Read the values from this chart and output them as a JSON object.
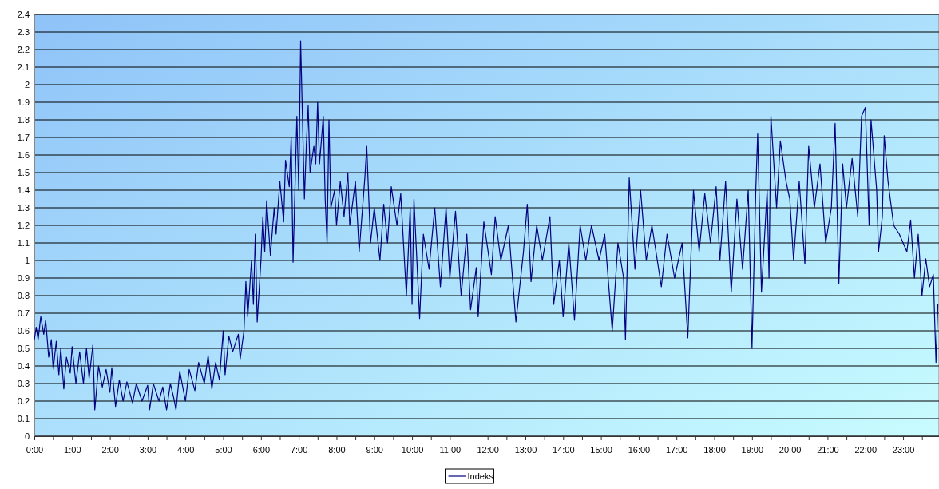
{
  "chart_data": {
    "type": "line",
    "x": [
      0,
      0.05,
      0.1,
      0.17,
      0.25,
      0.3,
      0.38,
      0.45,
      0.5,
      0.58,
      0.65,
      0.7,
      0.78,
      0.85,
      0.95,
      1,
      1.1,
      1.2,
      1.3,
      1.38,
      1.45,
      1.55,
      1.6,
      1.7,
      1.8,
      1.9,
      2,
      2.05,
      2.15,
      2.25,
      2.35,
      2.45,
      2.6,
      2.7,
      2.85,
      3,
      3.05,
      3.15,
      3.3,
      3.4,
      3.5,
      3.6,
      3.7,
      3.75,
      3.85,
      4,
      4.1,
      4.25,
      4.35,
      4.5,
      4.6,
      4.7,
      4.8,
      4.9,
      5,
      5.05,
      5.15,
      5.25,
      5.4,
      5.45,
      5.55,
      5.6,
      5.65,
      5.75,
      5.8,
      5.85,
      5.9,
      6,
      6.05,
      6.1,
      6.15,
      6.25,
      6.35,
      6.4,
      6.5,
      6.6,
      6.65,
      6.75,
      6.8,
      6.85,
      6.95,
      7,
      7.05,
      7.1,
      7.15,
      7.2,
      7.25,
      7.3,
      7.4,
      7.45,
      7.5,
      7.55,
      7.65,
      7.7,
      7.75,
      7.8,
      7.85,
      7.95,
      8,
      8.1,
      8.2,
      8.3,
      8.35,
      8.5,
      8.6,
      8.75,
      8.8,
      8.9,
      9,
      9.15,
      9.25,
      9.35,
      9.45,
      9.6,
      9.7,
      9.85,
      9.95,
      10,
      10.05,
      10.2,
      10.3,
      10.45,
      10.6,
      10.75,
      10.9,
      11,
      11.15,
      11.3,
      11.45,
      11.55,
      11.7,
      11.75,
      11.9,
      12.1,
      12.2,
      12.35,
      12.55,
      12.75,
      12.95,
      13.05,
      13.15,
      13.3,
      13.45,
      13.65,
      13.75,
      13.9,
      14,
      14.15,
      14.3,
      14.45,
      14.6,
      14.75,
      14.95,
      15.1,
      15.3,
      15.45,
      15.6,
      15.65,
      15.75,
      15.9,
      16.05,
      16.2,
      16.35,
      16.6,
      16.75,
      16.95,
      17.15,
      17.3,
      17.45,
      17.6,
      17.75,
      17.9,
      18.05,
      18.15,
      18.3,
      18.45,
      18.6,
      18.75,
      18.9,
      19,
      19.1,
      19.15,
      19.25,
      19.4,
      19.45,
      19.5,
      19.65,
      19.75,
      19.9,
      20,
      20.1,
      20.25,
      20.4,
      20.5,
      20.65,
      20.8,
      20.95,
      21.1,
      21.2,
      21.3,
      21.4,
      21.5,
      21.65,
      21.8,
      21.9,
      22,
      22.1,
      22.15,
      22.3,
      22.35,
      22.45,
      22.5,
      22.6,
      22.75,
      22.9,
      23.1,
      23.2,
      23.3,
      23.4,
      23.5,
      23.6,
      23.7,
      23.8,
      23.87,
      23.92
    ],
    "series": [
      {
        "name": "Indeks",
        "color": "#000080",
        "values": [
          0.55,
          0.62,
          0.55,
          0.68,
          0.58,
          0.66,
          0.45,
          0.55,
          0.38,
          0.54,
          0.35,
          0.5,
          0.27,
          0.45,
          0.36,
          0.51,
          0.3,
          0.48,
          0.3,
          0.5,
          0.33,
          0.52,
          0.15,
          0.4,
          0.28,
          0.38,
          0.25,
          0.39,
          0.17,
          0.32,
          0.2,
          0.31,
          0.19,
          0.3,
          0.2,
          0.29,
          0.15,
          0.3,
          0.2,
          0.28,
          0.15,
          0.3,
          0.21,
          0.15,
          0.37,
          0.2,
          0.38,
          0.26,
          0.42,
          0.3,
          0.46,
          0.27,
          0.42,
          0.32,
          0.6,
          0.35,
          0.57,
          0.48,
          0.58,
          0.44,
          0.6,
          0.88,
          0.68,
          1.0,
          0.75,
          1.15,
          0.65,
          1.0,
          1.25,
          1.05,
          1.34,
          1.03,
          1.3,
          1.15,
          1.45,
          1.22,
          1.57,
          1.42,
          1.7,
          0.99,
          1.82,
          1.4,
          2.25,
          1.8,
          1.35,
          1.65,
          1.88,
          1.5,
          1.65,
          1.55,
          1.9,
          1.55,
          1.82,
          1.35,
          1.1,
          1.8,
          1.3,
          1.4,
          1.2,
          1.45,
          1.25,
          1.5,
          1.2,
          1.45,
          1.05,
          1.47,
          1.65,
          1.1,
          1.3,
          1.0,
          1.32,
          1.1,
          1.42,
          1.2,
          1.38,
          0.8,
          1.3,
          0.75,
          1.35,
          0.67,
          1.15,
          0.95,
          1.3,
          0.85,
          1.3,
          0.9,
          1.28,
          0.8,
          1.15,
          0.72,
          0.96,
          0.68,
          1.22,
          0.92,
          1.25,
          1.0,
          1.2,
          0.65,
          1.05,
          1.32,
          0.88,
          1.2,
          1.0,
          1.25,
          0.75,
          1.0,
          0.68,
          1.1,
          0.66,
          1.2,
          1.0,
          1.2,
          1.0,
          1.15,
          0.6,
          1.1,
          0.9,
          0.55,
          1.47,
          0.95,
          1.4,
          1.0,
          1.2,
          0.85,
          1.15,
          0.9,
          1.1,
          0.56,
          1.4,
          1.05,
          1.38,
          1.1,
          1.42,
          1.0,
          1.45,
          0.82,
          1.35,
          0.95,
          1.4,
          0.5,
          1.4,
          1.72,
          0.82,
          1.4,
          0.9,
          1.82,
          1.3,
          1.68,
          1.45,
          1.35,
          1.0,
          1.45,
          0.98,
          1.65,
          1.3,
          1.55,
          1.1,
          1.3,
          1.78,
          0.87,
          1.55,
          1.3,
          1.58,
          1.25,
          1.82,
          1.87,
          1.2,
          1.8,
          1.4,
          1.05,
          1.25,
          1.71,
          1.45,
          1.2,
          1.15,
          1.05,
          1.23,
          0.9,
          1.15,
          0.8,
          1.01,
          0.85,
          0.92,
          0.42,
          0.75
        ]
      }
    ],
    "xlim": [
      0,
      23.95
    ],
    "xticks": [
      {
        "value": 0,
        "label": "0:00"
      },
      {
        "value": 0.5,
        "label": null
      },
      {
        "value": 1,
        "label": "1:00"
      },
      {
        "value": 1.5,
        "label": null
      },
      {
        "value": 2,
        "label": "2:00"
      },
      {
        "value": 2.5,
        "label": null
      },
      {
        "value": 3,
        "label": "3:00"
      },
      {
        "value": 3.5,
        "label": null
      },
      {
        "value": 4,
        "label": "4:00"
      },
      {
        "value": 4.5,
        "label": null
      },
      {
        "value": 5,
        "label": "5:00"
      },
      {
        "value": 5.5,
        "label": null
      },
      {
        "value": 6,
        "label": "6:00"
      },
      {
        "value": 6.5,
        "label": null
      },
      {
        "value": 7,
        "label": "7:00"
      },
      {
        "value": 7.5,
        "label": null
      },
      {
        "value": 8,
        "label": "8:00"
      },
      {
        "value": 8.5,
        "label": null
      },
      {
        "value": 9,
        "label": "9:00"
      },
      {
        "value": 9.5,
        "label": null
      },
      {
        "value": 10,
        "label": "10:00"
      },
      {
        "value": 10.5,
        "label": null
      },
      {
        "value": 11,
        "label": "11:00"
      },
      {
        "value": 11.5,
        "label": null
      },
      {
        "value": 12,
        "label": "12:00"
      },
      {
        "value": 12.5,
        "label": null
      },
      {
        "value": 13,
        "label": "13:00"
      },
      {
        "value": 13.5,
        "label": null
      },
      {
        "value": 14,
        "label": "14:00"
      },
      {
        "value": 14.5,
        "label": null
      },
      {
        "value": 15,
        "label": "15:00"
      },
      {
        "value": 15.5,
        "label": null
      },
      {
        "value": 16,
        "label": "16:00"
      },
      {
        "value": 16.5,
        "label": null
      },
      {
        "value": 17,
        "label": "17:00"
      },
      {
        "value": 17.5,
        "label": null
      },
      {
        "value": 18,
        "label": "18:00"
      },
      {
        "value": 18.5,
        "label": null
      },
      {
        "value": 19,
        "label": "19:00"
      },
      {
        "value": 19.5,
        "label": null
      },
      {
        "value": 20,
        "label": "20:00"
      },
      {
        "value": 20.5,
        "label": null
      },
      {
        "value": 21,
        "label": "21:00"
      },
      {
        "value": 21.5,
        "label": null
      },
      {
        "value": 22,
        "label": "22:00"
      },
      {
        "value": 22.5,
        "label": null
      },
      {
        "value": 23,
        "label": "23:00"
      },
      {
        "value": 23.5,
        "label": null
      }
    ],
    "ylim": [
      0,
      2.4
    ],
    "yticks": [
      0,
      0.1,
      0.2,
      0.3,
      0.4,
      0.5,
      0.6,
      0.7,
      0.8,
      0.9,
      1,
      1.1,
      1.2,
      1.3,
      1.4,
      1.5,
      1.6,
      1.7,
      1.8,
      1.9,
      2,
      2.1,
      2.2,
      2.3,
      2.4
    ],
    "grid": "y",
    "legend": "bottom"
  }
}
